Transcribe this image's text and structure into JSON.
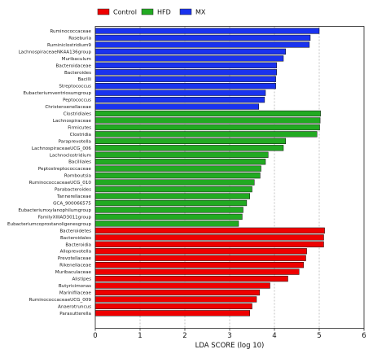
{
  "chart_data": {
    "type": "bar",
    "orientation": "horizontal",
    "xlabel": "LDA SCORE (log 10)",
    "xlim": [
      0,
      6
    ],
    "xticks": [
      "0",
      "1",
      "2",
      "3",
      "4",
      "5",
      "6"
    ],
    "grid": "vertical dashed",
    "legend_position": "top",
    "legend": [
      {
        "name": "Control",
        "color": "#ee0000"
      },
      {
        "name": "HFD",
        "color": "#22aa22"
      },
      {
        "name": "MX",
        "color": "#1a33ee"
      }
    ],
    "series": [
      {
        "name": "MX",
        "color": "#1a33ee",
        "categories": [
          "Ruminococcaceae",
          "Roseburia",
          "Ruminiclostridium9",
          "LachnospiraceaeNK4A136group",
          "Muribaculum",
          "Bacteroidaceae",
          "Bacteroides",
          "Bacilli",
          "Streptococcus",
          "Eubacteriumventriosumgroup",
          "Peptococcus",
          "Christensenellaceae"
        ],
        "values": [
          5.0,
          4.8,
          4.78,
          4.25,
          4.2,
          4.05,
          4.05,
          4.03,
          4.03,
          3.8,
          3.78,
          3.65
        ]
      },
      {
        "name": "HFD",
        "color": "#22aa22",
        "categories": [
          "Clostridiales",
          "Lachnospiraceae",
          "Firmicutes",
          "Clostridia",
          "Paraprevotella",
          "LachnospiraceaeUCG_006",
          "Lachnoclostridium",
          "Bacilliales",
          "Peptostreptococcaceae",
          "Romboutsia",
          "RuminococcaceaeUCG_010",
          "Parabacteroides",
          "Tannerellaceae",
          "GCA_900066575",
          "Eubacteriumxylanophilumgroup",
          "FamilyXIIIAD3011group",
          "Eubacteriumcoprostanoligenesgroup"
        ],
        "values": [
          5.03,
          5.02,
          5.01,
          4.95,
          4.25,
          4.2,
          3.86,
          3.8,
          3.7,
          3.68,
          3.55,
          3.5,
          3.45,
          3.38,
          3.3,
          3.28,
          3.2
        ]
      },
      {
        "name": "Control",
        "color": "#ee0000",
        "categories": [
          "Bacteroidetes",
          "Bacteroidales",
          "Bacteroidia",
          "Alloprevotella",
          "Prevotellaceae",
          "Rikenellaceae",
          "Muribaculaceae",
          "Alistipes",
          "Butyricimonas",
          "Marinifilaceae",
          "RuminococcaceaeUCG_009",
          "Anaerotruncus",
          "Parasutterella"
        ],
        "values": [
          5.12,
          5.1,
          5.1,
          4.72,
          4.7,
          4.65,
          4.55,
          4.3,
          3.9,
          3.67,
          3.6,
          3.5,
          3.45
        ]
      }
    ]
  }
}
